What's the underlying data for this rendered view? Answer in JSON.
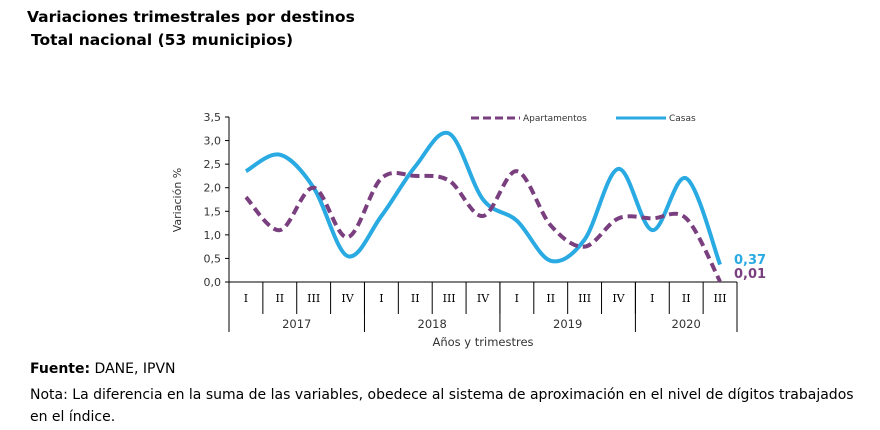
{
  "title": "Variaciones trimestrales por destinos",
  "subtitle": "Total nacional (53 municipios)",
  "footer": {
    "source_label": "Fuente:",
    "source_text": " DANE, IPVN",
    "note": "Nota: La diferencia en la suma de las variables, obedece al sistema de aproximación en el nivel de dígitos trabajados en el índice."
  },
  "chart_data": {
    "type": "line",
    "title": "Variaciones trimestrales por destinos",
    "subtitle": "Total nacional (53 municipios)",
    "xlabel": "Años y trimestres",
    "ylabel": "Variación %",
    "ylim": [
      0,
      3.5
    ],
    "yticks": [
      "0,0",
      "0,5",
      "1,0",
      "1,5",
      "2,0",
      "2,5",
      "3,0",
      "3,5"
    ],
    "quarters": [
      "I",
      "II",
      "III",
      "IV",
      "I",
      "II",
      "III",
      "IV",
      "I",
      "II",
      "III",
      "IV",
      "I",
      "II",
      "III"
    ],
    "years": [
      {
        "label": "2017",
        "span": 4
      },
      {
        "label": "2018",
        "span": 4
      },
      {
        "label": "2019",
        "span": 4
      },
      {
        "label": "2020",
        "span": 3
      }
    ],
    "legend_position": "top-right",
    "series": [
      {
        "name": "Apartamentos",
        "style": "dashed",
        "color": "#7a3f7f",
        "values": [
          1.8,
          1.1,
          2.0,
          0.95,
          2.2,
          2.25,
          2.15,
          1.4,
          2.35,
          1.2,
          0.75,
          1.35,
          1.35,
          1.35,
          0.01
        ],
        "end_label": "0,01"
      },
      {
        "name": "Casas",
        "style": "solid",
        "color": "#2aaae2",
        "values": [
          2.35,
          2.7,
          2.0,
          0.55,
          1.4,
          2.45,
          3.15,
          1.75,
          1.3,
          0.45,
          0.9,
          2.4,
          1.1,
          2.2,
          0.37
        ],
        "end_label": "0,37"
      }
    ]
  }
}
